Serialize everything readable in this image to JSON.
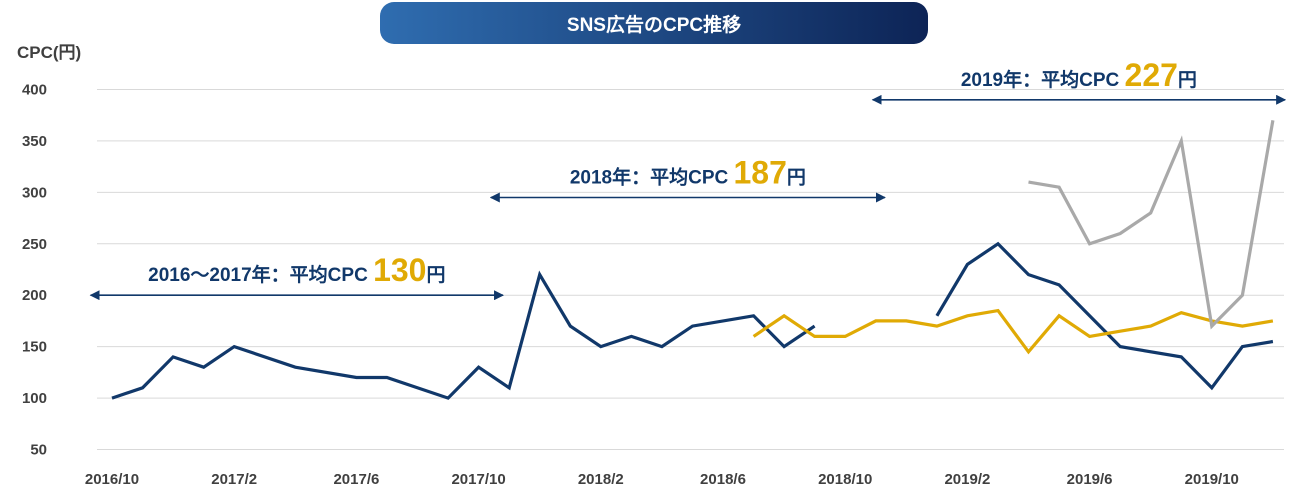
{
  "title": "SNS広告のCPC推移",
  "colors": {
    "title_start": "#2f6db0",
    "title_end": "#0d2456",
    "navy": "#11386a",
    "gold": "#e0aa05",
    "gray": "#a9a9a9",
    "grid": "#d9d9d9",
    "text": "#404040"
  },
  "chart_data": {
    "type": "line",
    "title": "SNS広告のCPC推移",
    "ylabel": "CPC(円)",
    "xlabel": "",
    "ylim": [
      50,
      400
    ],
    "yticks": [
      400,
      350,
      300,
      250,
      200,
      150,
      100,
      50
    ],
    "grid": true,
    "x_tick_labels": [
      {
        "label": "2016/10",
        "at": 0
      },
      {
        "label": "2017/2",
        "at": 4
      },
      {
        "label": "2017/6",
        "at": 8
      },
      {
        "label": "2017/10",
        "at": 12
      },
      {
        "label": "2018/2",
        "at": 16
      },
      {
        "label": "2018/6",
        "at": 20
      },
      {
        "label": "2018/10",
        "at": 24
      },
      {
        "label": "2019/2",
        "at": 28
      },
      {
        "label": "2019/6",
        "at": 32
      },
      {
        "label": "2019/10",
        "at": 36
      }
    ],
    "series": [
      {
        "color": "navy",
        "points": [
          [
            0,
            100
          ],
          [
            1,
            110
          ],
          [
            2,
            140
          ],
          [
            3,
            130
          ],
          [
            4,
            150
          ],
          [
            6,
            130
          ],
          [
            8,
            120
          ],
          [
            9,
            120
          ],
          [
            11,
            100
          ],
          [
            12,
            130
          ],
          [
            13,
            110
          ],
          [
            14,
            220
          ],
          [
            15,
            170
          ],
          [
            16,
            150
          ],
          [
            17,
            160
          ],
          [
            18,
            150
          ],
          [
            19,
            170
          ],
          [
            21,
            180
          ],
          [
            22,
            150
          ],
          [
            23,
            170
          ]
        ]
      },
      {
        "color": "navy",
        "points": [
          [
            27,
            180
          ],
          [
            28,
            230
          ],
          [
            29,
            250
          ],
          [
            30,
            220
          ],
          [
            31,
            210
          ],
          [
            32,
            180
          ],
          [
            33,
            150
          ],
          [
            35,
            140
          ],
          [
            36,
            110
          ],
          [
            37,
            150
          ],
          [
            38,
            155
          ]
        ]
      },
      {
        "color": "gold",
        "points": [
          [
            21,
            160
          ],
          [
            22,
            180
          ],
          [
            23,
            160
          ],
          [
            24,
            160
          ],
          [
            25,
            175
          ],
          [
            26,
            175
          ],
          [
            27,
            170
          ],
          [
            28,
            180
          ],
          [
            29,
            185
          ],
          [
            30,
            145
          ],
          [
            31,
            180
          ],
          [
            32,
            160
          ],
          [
            33,
            165
          ],
          [
            34,
            170
          ],
          [
            35,
            183
          ],
          [
            36,
            175
          ],
          [
            37,
            170
          ],
          [
            38,
            175
          ]
        ]
      },
      {
        "color": "gray",
        "points": [
          [
            30,
            310
          ],
          [
            31,
            305
          ],
          [
            32,
            250
          ],
          [
            33,
            260
          ],
          [
            34,
            280
          ],
          [
            35,
            350
          ],
          [
            36,
            170
          ],
          [
            37,
            200
          ],
          [
            38,
            370
          ]
        ]
      }
    ],
    "annotations": [
      {
        "label": "2016〜2017年：平均CPC",
        "value": "130",
        "unit": "円",
        "x_from": -0.7,
        "x_to": 12.8,
        "y_value": 200
      },
      {
        "label": "2018年：平均CPC",
        "value": "187",
        "unit": "円",
        "x_from": 12.4,
        "x_to": 25.3,
        "y_value": 295
      },
      {
        "label": "2019年：平均CPC",
        "value": "227",
        "unit": "円",
        "x_from": 24.9,
        "x_to": 38.4,
        "y_value": 390
      }
    ]
  }
}
